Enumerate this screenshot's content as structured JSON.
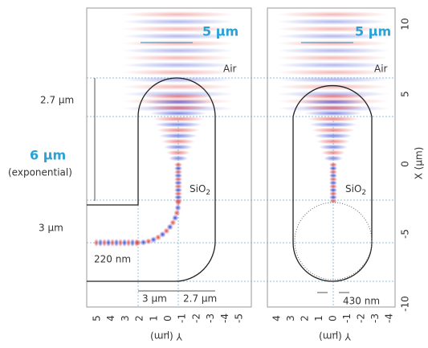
{
  "left_panel": {
    "width_label": "5 µm",
    "medium_top": "Air",
    "taper_length": "2.7 µm",
    "exp_length": "6 µm",
    "exp_note": "(exponential)",
    "bend_length": "3 µm",
    "core": "SiO",
    "core_sub": "2",
    "input_width": "220 nm",
    "bottom_left": "3 µm",
    "bottom_right": "2.7 µm",
    "axis_label": "Y (µm)",
    "ticks": [
      "5",
      "4",
      "3",
      "2",
      "1",
      "0",
      "-1",
      "-2",
      "-3",
      "-4",
      "-5"
    ]
  },
  "right_panel": {
    "width_label": "5 µm",
    "medium_top": "Air",
    "core": "SiO",
    "core_sub": "2",
    "tip_width": "430 nm",
    "axis_label": "Y (µm)",
    "ticks": [
      "4",
      "3",
      "2",
      "1",
      "0",
      "-1",
      "-2",
      "-3",
      "-4"
    ]
  },
  "right_axis": {
    "label": "X (µm)",
    "ticks": [
      "10",
      "5",
      "0",
      "-5",
      "-10"
    ]
  }
}
